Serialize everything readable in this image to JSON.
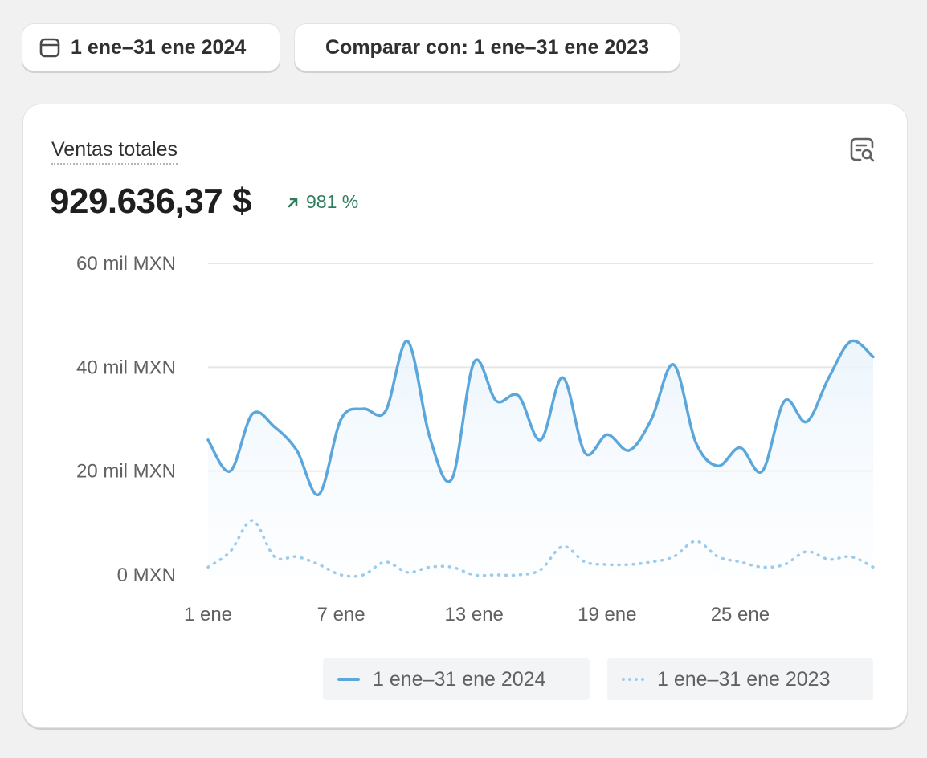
{
  "filters": {
    "date_range_label": "1 ene–31 ene 2024",
    "compare_label": "Comparar con: 1 ene–31 ene 2023"
  },
  "card": {
    "title": "Ventas totales",
    "total": "929.636,37 $",
    "change": "981 %",
    "explore_icon": "explore-report-icon"
  },
  "colors": {
    "current": "#5ba7dc",
    "previous": "#9ccbeb",
    "trend_up": "#2e7d5b"
  },
  "chart_data": {
    "type": "line",
    "title": "",
    "xlabel": "",
    "ylabel": "",
    "y_tick_labels": [
      "0 MXN",
      "20 mil MXN",
      "40 mil MXN",
      "60 mil MXN"
    ],
    "y_ticks": [
      0,
      20000,
      40000,
      60000
    ],
    "ylim": [
      0,
      60000
    ],
    "x_tick_labels": [
      "1 ene",
      "7 ene",
      "13 ene",
      "19 ene",
      "25 ene"
    ],
    "x_tick_days": [
      1,
      7,
      13,
      19,
      25
    ],
    "days": [
      1,
      2,
      3,
      4,
      5,
      6,
      7,
      8,
      9,
      10,
      11,
      12,
      13,
      14,
      15,
      16,
      17,
      18,
      19,
      20,
      21,
      22,
      23,
      24,
      25,
      26,
      27,
      28,
      29,
      30,
      31
    ],
    "grid": true,
    "legend_position": "bottom-right",
    "series": [
      {
        "name": "1 ene–31 ene 2024",
        "style": "solid",
        "values": [
          26000,
          20000,
          31000,
          28500,
          24000,
          15500,
          30000,
          32000,
          31500,
          45000,
          26500,
          18500,
          41000,
          33500,
          34500,
          26000,
          38000,
          23500,
          27000,
          24000,
          30000,
          40500,
          25500,
          21000,
          24500,
          20000,
          33500,
          29500,
          38000,
          45000,
          42000
        ]
      },
      {
        "name": "1 ene–31 ene 2023",
        "style": "dotted",
        "values": [
          1500,
          4500,
          10500,
          3500,
          3500,
          2000,
          0,
          0,
          2500,
          500,
          1500,
          1500,
          0,
          0,
          0,
          1000,
          5500,
          2500,
          2000,
          2000,
          2500,
          3500,
          6500,
          3500,
          2500,
          1500,
          2000,
          4500,
          3000,
          3500,
          1500
        ]
      }
    ]
  }
}
